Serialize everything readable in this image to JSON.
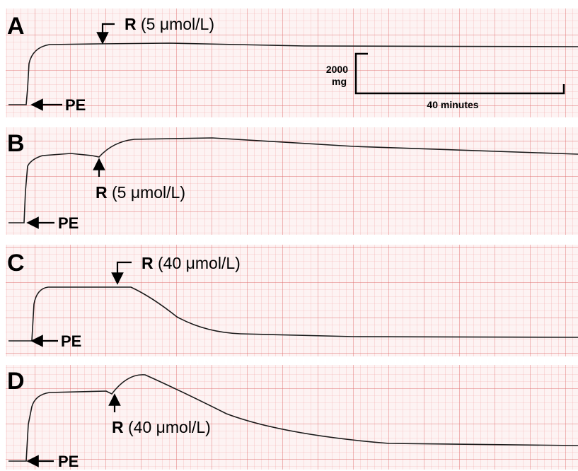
{
  "panels": [
    {
      "label": "A",
      "drug": "R",
      "dose": "(5 μmol/L)",
      "agonist": "PE"
    },
    {
      "label": "B",
      "drug": "R",
      "dose": "(5 μmol/L)",
      "agonist": "PE"
    },
    {
      "label": "C",
      "drug": "R",
      "dose": "(40 μmol/L)",
      "agonist": "PE"
    },
    {
      "label": "D",
      "drug": "R",
      "dose": "(40 μmol/L)",
      "agonist": "PE"
    }
  ],
  "scale_bar": {
    "force_value": "2000",
    "force_unit": "mg",
    "time": "40 minutes"
  }
}
